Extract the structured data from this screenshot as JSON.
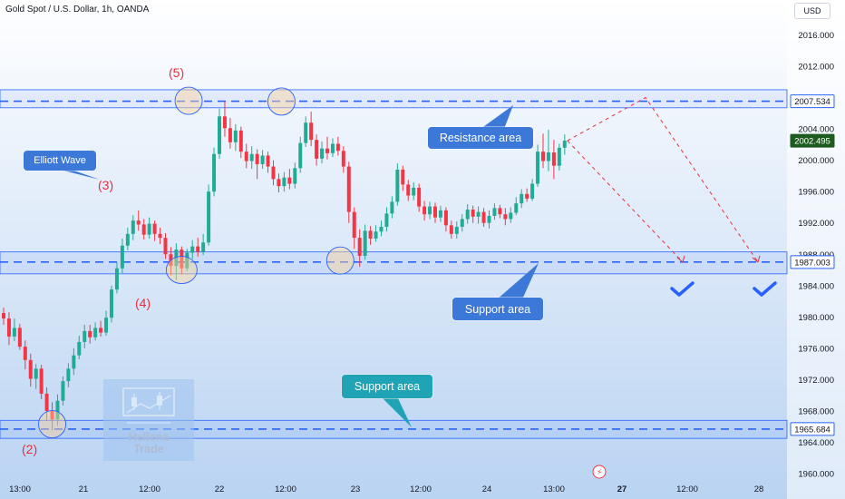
{
  "title": "Gold Spot / U.S. Dollar, 1h, OANDA",
  "currency_button": "USD",
  "price_labels": [
    {
      "value": "2007.534",
      "bg": "#ffffff",
      "fg": "#131722",
      "border": "#2962ff"
    },
    {
      "value": "2002.495",
      "bg": "#1e5b1f",
      "fg": "#ffffff",
      "border": "#1e5b1f"
    },
    {
      "value": "1987.003",
      "bg": "#ffffff",
      "fg": "#131722",
      "border": "#2962ff"
    },
    {
      "value": "1965.684",
      "bg": "#ffffff",
      "fg": "#131722",
      "border": "#2962ff"
    }
  ],
  "callouts": {
    "resistance": "Resistance area",
    "elliott": "Elliott Wave",
    "support1": "Support area",
    "support2": "Support area"
  },
  "wave_labels": {
    "w2": "(2)",
    "w3": "(3)",
    "w4": "(4)",
    "w5": "(5)"
  },
  "logo": {
    "line1": "Hellena",
    "line2": "Trade"
  },
  "colors": {
    "up": "#22ab94",
    "down": "#f23645",
    "zone": "#2962ff",
    "callout_blue": "#3c78d8",
    "callout_teal": "#20a3b4",
    "projection": "#e3313f"
  },
  "chart_data": {
    "type": "candlestick",
    "title": "Gold Spot / U.S. Dollar, 1h, OANDA",
    "ylim": [
      1958,
      2020
    ],
    "y_ticks": [
      "2016.000",
      "2012.000",
      "2008.000",
      "2004.000",
      "2000.000",
      "1996.000",
      "1992.000",
      "1988.000",
      "1984.000",
      "1980.000",
      "1976.000",
      "1972.000",
      "1968.000",
      "1964.000",
      "1960.000"
    ],
    "x_ticks": [
      "13:00",
      "21",
      "12:00",
      "22",
      "12:00",
      "23",
      "12:00",
      "24",
      "13:00",
      "27",
      "12:00",
      "28"
    ],
    "zones": [
      {
        "name": "Resistance area",
        "low": 2006.7,
        "high": 2009.0,
        "level": 2007.534
      },
      {
        "name": "Support area",
        "low": 1985.5,
        "high": 1988.3,
        "level": 1987.003
      },
      {
        "name": "Support area",
        "low": 1964.5,
        "high": 1966.8,
        "level": 1965.684
      }
    ],
    "last_price": 2002.495,
    "projection": [
      2002.5,
      2008.0,
      1987.0
    ],
    "candles": [
      [
        1980.5,
        1979.8,
        1981.2,
        1979.0
      ],
      [
        1979.8,
        1977.5,
        1980.6,
        1976.4
      ],
      [
        1977.5,
        1978.6,
        1979.8,
        1976.9
      ],
      [
        1978.6,
        1976.2,
        1979.1,
        1975.8
      ],
      [
        1976.2,
        1974.5,
        1977.0,
        1973.3
      ],
      [
        1974.5,
        1972.1,
        1975.3,
        1971.1
      ],
      [
        1972.1,
        1973.4,
        1974.0,
        1970.8
      ],
      [
        1973.4,
        1970.2,
        1973.9,
        1969.5
      ],
      [
        1970.2,
        1968.0,
        1971.0,
        1966.7
      ],
      [
        1968.0,
        1966.9,
        1969.1,
        1965.5
      ],
      [
        1966.9,
        1969.3,
        1970.1,
        1966.1
      ],
      [
        1969.3,
        1971.8,
        1972.4,
        1968.7
      ],
      [
        1971.8,
        1973.4,
        1974.1,
        1971.0
      ],
      [
        1973.4,
        1975.1,
        1976.0,
        1972.6
      ],
      [
        1975.1,
        1976.8,
        1977.6,
        1974.6
      ],
      [
        1976.8,
        1978.2,
        1979.0,
        1976.0
      ],
      [
        1978.2,
        1977.4,
        1979.0,
        1976.6
      ],
      [
        1977.4,
        1978.6,
        1979.3,
        1977.0
      ],
      [
        1978.6,
        1978.0,
        1979.5,
        1977.5
      ],
      [
        1978.0,
        1979.9,
        1980.8,
        1977.6
      ],
      [
        1979.9,
        1983.5,
        1984.0,
        1979.3
      ],
      [
        1983.5,
        1986.2,
        1987.0,
        1983.0
      ],
      [
        1986.2,
        1989.1,
        1990.0,
        1985.6
      ],
      [
        1989.1,
        1990.6,
        1991.4,
        1988.5
      ],
      [
        1990.6,
        1992.3,
        1993.0,
        1989.8
      ],
      [
        1992.3,
        1991.8,
        1993.6,
        1991.0
      ],
      [
        1991.8,
        1990.5,
        1992.5,
        1989.9
      ],
      [
        1990.5,
        1991.9,
        1992.7,
        1990.0
      ],
      [
        1991.9,
        1990.6,
        1992.3,
        1989.7
      ],
      [
        1990.6,
        1990.1,
        1991.4,
        1989.3
      ],
      [
        1990.1,
        1988.0,
        1990.7,
        1987.4
      ],
      [
        1988.0,
        1986.5,
        1988.9,
        1985.3
      ],
      [
        1986.5,
        1988.6,
        1989.4,
        1984.7
      ],
      [
        1988.6,
        1986.2,
        1989.0,
        1985.4
      ],
      [
        1986.2,
        1988.2,
        1988.7,
        1985.8
      ],
      [
        1988.2,
        1989.0,
        1989.8,
        1987.4
      ],
      [
        1989.0,
        1988.3,
        1990.1,
        1987.7
      ],
      [
        1988.3,
        1989.5,
        1990.6,
        1987.9
      ],
      [
        1989.5,
        1996.0,
        1996.9,
        1989.1
      ],
      [
        1996.0,
        2000.8,
        2001.6,
        1995.4
      ],
      [
        2000.8,
        2005.6,
        2006.6,
        2000.2
      ],
      [
        2005.6,
        2004.1,
        2007.6,
        2003.0
      ],
      [
        2004.1,
        2002.3,
        2005.4,
        2001.5
      ],
      [
        2002.3,
        2003.8,
        2004.6,
        2001.2
      ],
      [
        2003.8,
        2001.1,
        2004.3,
        2000.3
      ],
      [
        2001.1,
        1999.9,
        2002.1,
        1999.0
      ],
      [
        1999.9,
        2000.8,
        2001.8,
        1998.9
      ],
      [
        2000.8,
        1999.5,
        2001.4,
        1997.6
      ],
      [
        1999.5,
        2000.6,
        2001.3,
        1998.9
      ],
      [
        2000.6,
        1999.2,
        2001.1,
        1998.4
      ],
      [
        1999.2,
        1997.6,
        2000.0,
        1996.8
      ],
      [
        1997.6,
        1996.7,
        1998.3,
        1995.9
      ],
      [
        1996.7,
        1997.8,
        1998.5,
        1996.0
      ],
      [
        1997.8,
        1997.0,
        1998.9,
        1996.3
      ],
      [
        1997.0,
        1999.0,
        1999.7,
        1996.4
      ],
      [
        1999.0,
        2002.2,
        2003.0,
        1998.4
      ],
      [
        2002.2,
        2004.8,
        2005.6,
        2001.7
      ],
      [
        2004.8,
        2002.6,
        2006.2,
        2001.8
      ],
      [
        2002.6,
        2000.2,
        2003.3,
        1999.3
      ],
      [
        2000.2,
        2001.5,
        2002.4,
        1999.6
      ],
      [
        2001.5,
        2000.9,
        2003.0,
        2000.1
      ],
      [
        2000.9,
        2002.1,
        2002.8,
        2000.4
      ],
      [
        2002.1,
        2001.2,
        2003.0,
        2000.6
      ],
      [
        2001.2,
        1999.2,
        2001.8,
        1998.4
      ],
      [
        1999.2,
        1993.4,
        1999.8,
        1992.0
      ],
      [
        1993.4,
        1990.1,
        1994.0,
        1988.7
      ],
      [
        1990.1,
        1987.8,
        1991.2,
        1986.4
      ],
      [
        1987.8,
        1991.0,
        1991.8,
        1987.3
      ],
      [
        1991.0,
        1990.0,
        1991.6,
        1989.2
      ],
      [
        1990.0,
        1990.9,
        1991.7,
        1989.6
      ],
      [
        1990.9,
        1991.5,
        1992.3,
        1990.3
      ],
      [
        1991.5,
        1993.2,
        1994.0,
        1990.9
      ],
      [
        1993.2,
        1994.7,
        1995.4,
        1992.6
      ],
      [
        1994.7,
        1998.8,
        1999.6,
        1994.2
      ],
      [
        1998.8,
        1996.9,
        1999.3,
        1996.1
      ],
      [
        1996.9,
        1995.5,
        1997.5,
        1994.8
      ],
      [
        1995.5,
        1996.5,
        1997.2,
        1994.9
      ],
      [
        1996.5,
        1994.1,
        1997.0,
        1993.4
      ],
      [
        1994.1,
        1993.1,
        1994.8,
        1992.3
      ],
      [
        1993.1,
        1994.1,
        1994.7,
        1992.5
      ],
      [
        1994.1,
        1992.7,
        1994.6,
        1992.0
      ],
      [
        1992.7,
        1993.6,
        1994.2,
        1992.1
      ],
      [
        1993.6,
        1991.7,
        1994.0,
        1990.9
      ],
      [
        1991.7,
        1990.6,
        1992.3,
        1990.0
      ],
      [
        1990.6,
        1991.5,
        1992.2,
        1990.0
      ],
      [
        1991.5,
        1992.5,
        1993.1,
        1990.9
      ],
      [
        1992.5,
        1993.7,
        1994.4,
        1991.9
      ],
      [
        1993.7,
        1992.8,
        1994.2,
        1992.0
      ],
      [
        1992.8,
        1993.4,
        1994.1,
        1991.9
      ],
      [
        1993.4,
        1992.0,
        1993.9,
        1991.5
      ],
      [
        1992.0,
        1992.9,
        1993.6,
        1991.3
      ],
      [
        1992.9,
        1993.9,
        1994.5,
        1992.4
      ],
      [
        1993.9,
        1993.1,
        1994.3,
        1992.6
      ],
      [
        1993.1,
        1992.5,
        1993.9,
        1991.7
      ],
      [
        1992.5,
        1993.3,
        1994.0,
        1992.0
      ],
      [
        1993.3,
        1994.5,
        1995.3,
        1993.0
      ],
      [
        1994.5,
        1995.7,
        1996.3,
        1993.9
      ],
      [
        1995.7,
        1995.1,
        1996.4,
        1994.7
      ],
      [
        1995.1,
        1997.0,
        1997.6,
        1994.8
      ],
      [
        1997.0,
        2001.1,
        2002.0,
        1996.6
      ],
      [
        2001.1,
        1999.9,
        2003.4,
        1999.0
      ],
      [
        1999.9,
        2001.0,
        2003.9,
        1998.6
      ],
      [
        2001.0,
        1999.3,
        2002.6,
        1997.6
      ],
      [
        1999.3,
        2001.6,
        2002.1,
        1998.7
      ],
      [
        2001.6,
        2002.5,
        2003.3,
        2000.7
      ]
    ]
  }
}
